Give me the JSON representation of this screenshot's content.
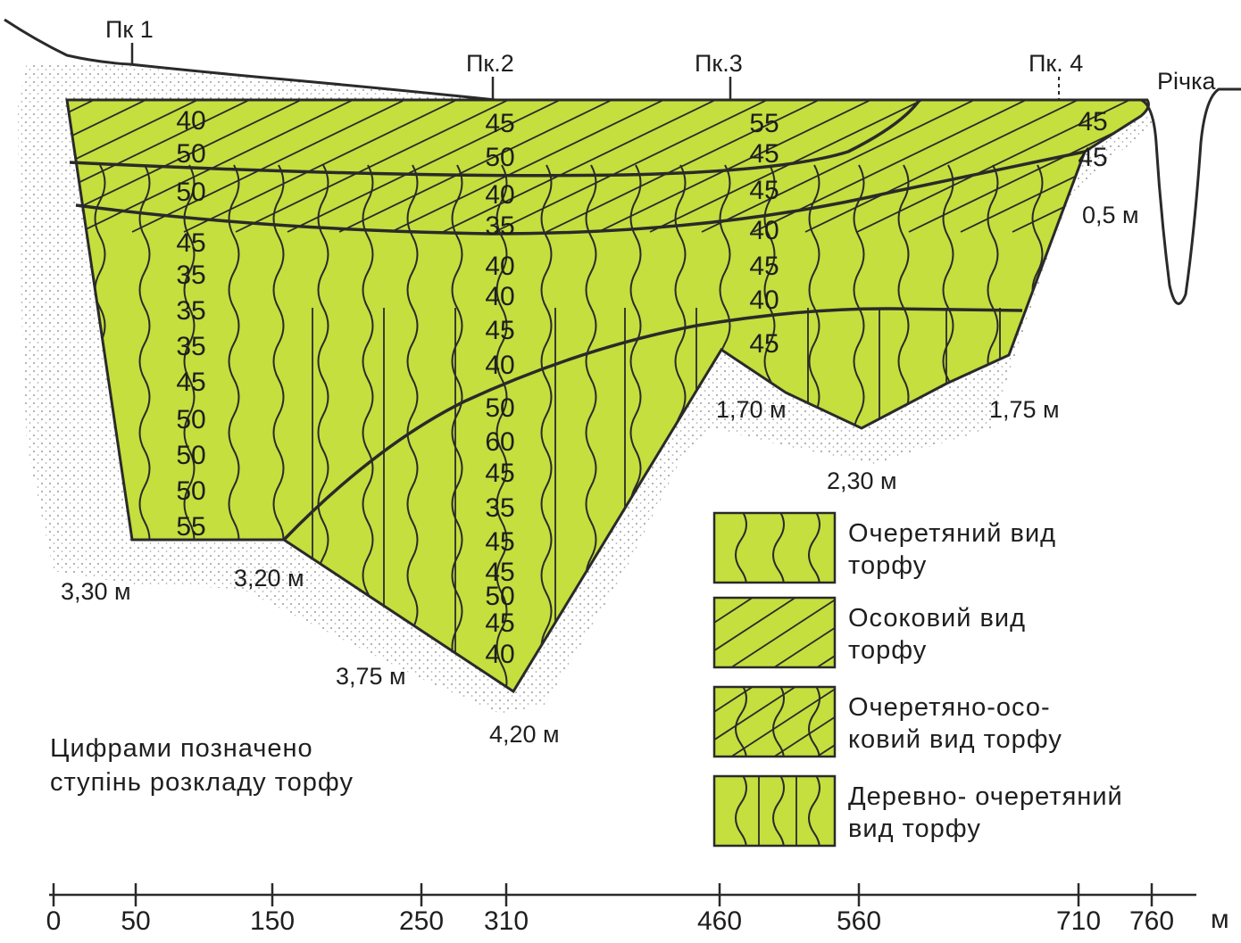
{
  "pickets": [
    "Пк 1",
    "Пк.2",
    "Пк.3",
    "Пк. 4"
  ],
  "river_label": "Річка",
  "unit": "м",
  "axis_ticks": [
    "0",
    "50",
    "150",
    "250",
    "310",
    "460",
    "560",
    "710",
    "760"
  ],
  "depths": [
    "3,30 м",
    "3,20 м",
    "3,75 м",
    "4,20 м",
    "1,70 м",
    "2,30 м",
    "1,75 м",
    "0,5 м"
  ],
  "note_lines": [
    "Цифрами позначено",
    "ступінь розкладу торфу"
  ],
  "decomposition": {
    "col_pk1": [
      "40",
      "50",
      "50",
      "45",
      "35",
      "35",
      "35",
      "45",
      "50",
      "50",
      "50",
      "55"
    ],
    "col_pk2": [
      "45",
      "50",
      "40",
      "35",
      "40",
      "40",
      "45",
      "40",
      "50",
      "60",
      "45",
      "35",
      "45",
      "45",
      "50",
      "45",
      "40"
    ],
    "col_pk3": [
      "55",
      "45",
      "45",
      "40",
      "45",
      "40",
      "45"
    ],
    "col_pk4": [
      "45",
      "45"
    ]
  },
  "legend": [
    {
      "lines": [
        "Очеретяний вид",
        "торфу"
      ],
      "pattern": "reed"
    },
    {
      "lines": [
        "Осоковий вид",
        "торфу"
      ],
      "pattern": "sedge"
    },
    {
      "lines": [
        "Очеретяно-осо-",
        "ковий вид торфу"
      ],
      "pattern": "reed-sedge"
    },
    {
      "lines": [
        "Деревно- очеретяний",
        "вид торфу"
      ],
      "pattern": "wood-reed"
    }
  ],
  "colors": {
    "peat_fill": "#c4df3e",
    "outline": "#2a2a2a",
    "soil_dots": "#9a9a9a"
  }
}
